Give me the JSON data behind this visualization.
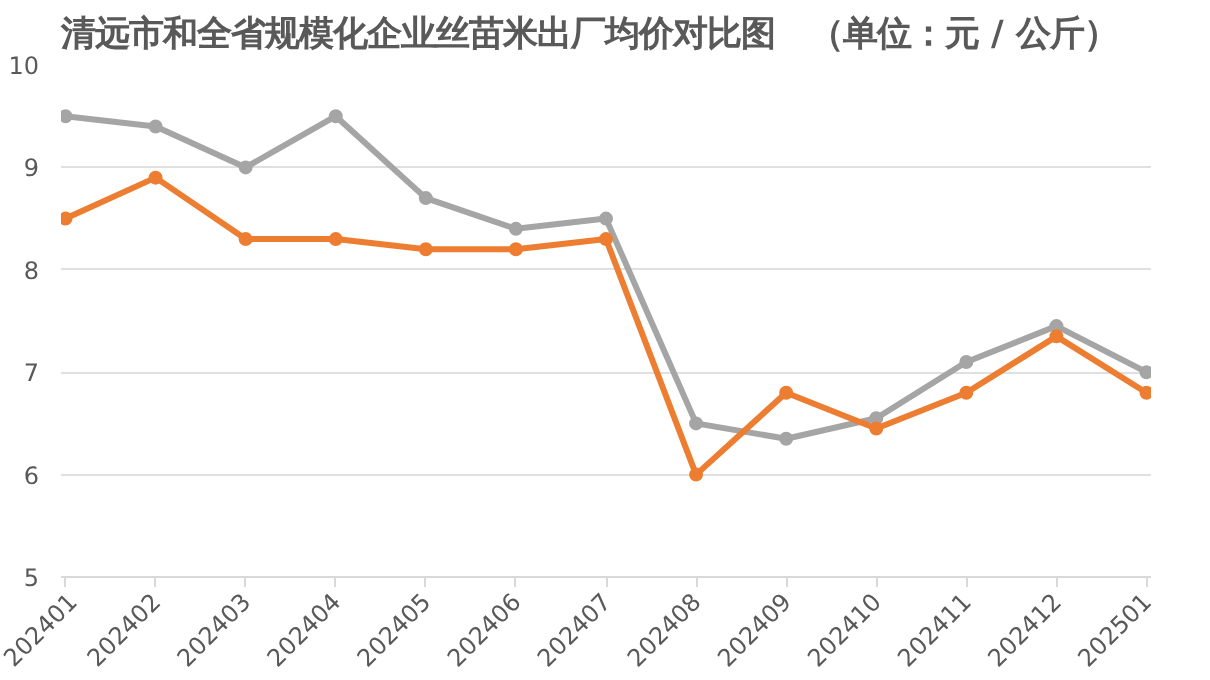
{
  "chart_data": {
    "type": "line",
    "title": "清远市和全省规模化企业丝苗米出厂均价对比图　（单位：元 / 公斤）",
    "categories": [
      "202401",
      "202402",
      "202403",
      "202404",
      "202405",
      "202406",
      "202407",
      "202408",
      "202409",
      "202410",
      "202411",
      "202412",
      "202501"
    ],
    "series": [
      {
        "color": "#a5a5a5",
        "values": [
          9.5,
          9.4,
          9.0,
          9.5,
          8.7,
          8.4,
          8.5,
          6.5,
          6.35,
          6.55,
          7.1,
          7.45,
          7.0
        ]
      },
      {
        "color": "#ed7d31",
        "values": [
          8.5,
          8.9,
          8.3,
          8.3,
          8.2,
          8.2,
          8.3,
          6.0,
          6.8,
          6.45,
          6.8,
          7.35,
          6.8
        ]
      }
    ],
    "ylim": [
      5,
      10
    ],
    "yticks": [
      5,
      6,
      7,
      8,
      9,
      10
    ],
    "grid": "y",
    "marker": "circle",
    "line_style": "solid"
  }
}
